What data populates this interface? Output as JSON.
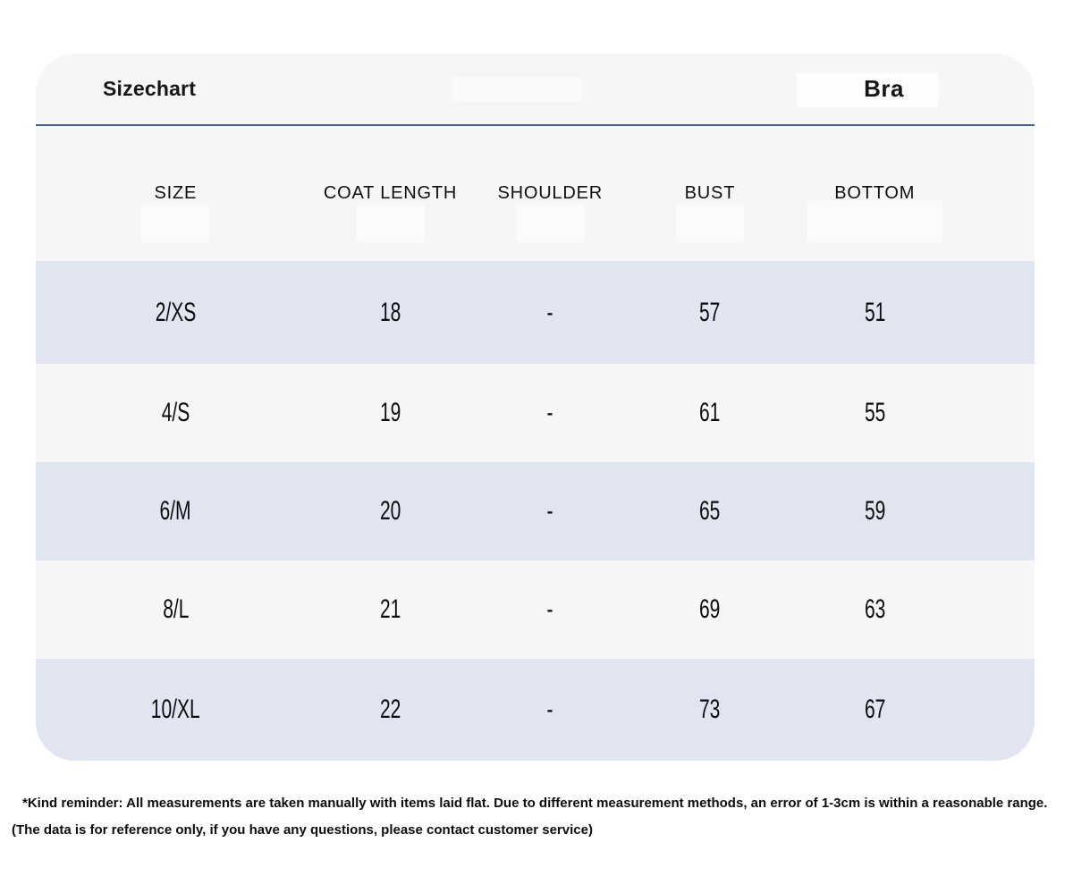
{
  "header": {
    "title": "Sizechart",
    "category": "Bra"
  },
  "chart_data": {
    "type": "table",
    "title": "Sizechart",
    "garment": "Bra",
    "columns": [
      "SIZE",
      "COAT LENGTH",
      "SHOULDER",
      "BUST",
      "BOTTOM"
    ],
    "rows": [
      [
        "2/XS",
        "18",
        "-",
        "57",
        "51"
      ],
      [
        "4/S",
        "19",
        "-",
        "61",
        "55"
      ],
      [
        "6/M",
        "20",
        "-",
        "65",
        "59"
      ],
      [
        "8/L",
        "21",
        "-",
        "69",
        "63"
      ],
      [
        "10/XL",
        "22",
        "-",
        "73",
        "67"
      ]
    ],
    "layout_hints": {
      "striped_rows": "odd rows lavender, even rows off-white",
      "units": "cm (implied by footer note)"
    }
  },
  "footer": {
    "line1": "*Kind reminder: All measurements are taken manually with items laid flat. Due to different measurement methods, an error of 1-3cm is within a reasonable range.",
    "line2": "(The data is for reference only, if you have any questions, please contact customer service)"
  },
  "colors": {
    "card_background": "#f6f6f7",
    "row_stripe": "#e1e5f1",
    "row_plain": "#f6f6f7",
    "divider_blue": "#3d6083",
    "text": "#161616",
    "page_background": "#ffffff"
  }
}
